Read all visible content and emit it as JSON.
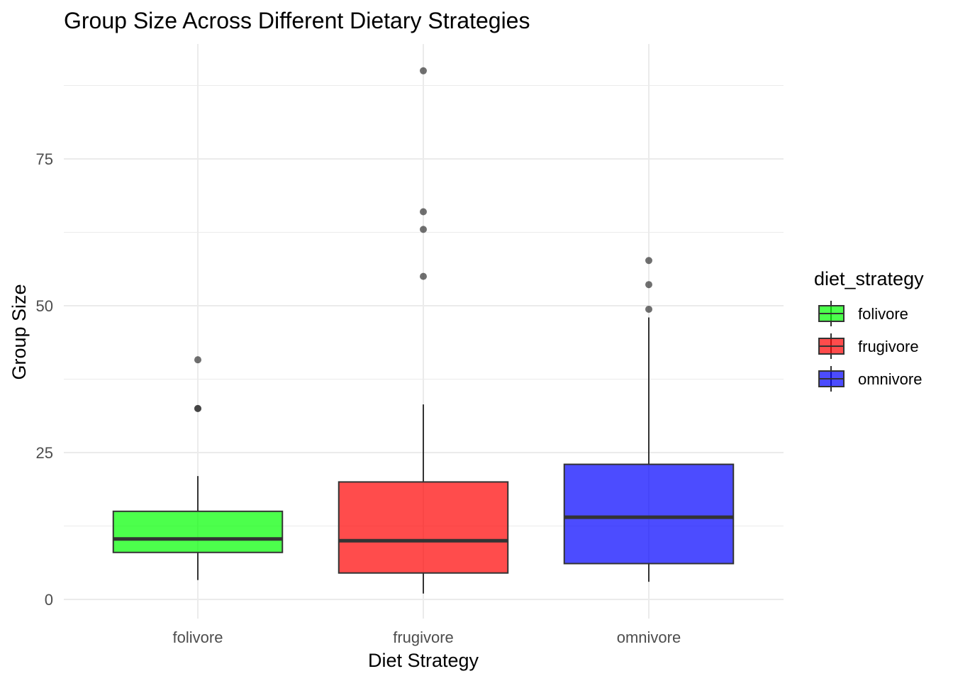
{
  "chart_data": {
    "type": "boxplot",
    "title": "Group Size Across Different Dietary Strategies",
    "xlabel": "Diet Strategy",
    "ylabel": "Group Size",
    "ylim": [
      -3,
      92
    ],
    "yticks": [
      0,
      25,
      50,
      75
    ],
    "grid": true,
    "legend": {
      "title": "diet_strategy",
      "position": "right",
      "entries": [
        "folivore",
        "frugivore",
        "omnivore"
      ]
    },
    "categories": [
      "folivore",
      "frugivore",
      "omnivore"
    ],
    "series": [
      {
        "name": "folivore",
        "color": "#00FF00",
        "whisker_low": 3.3,
        "q1": 8,
        "median": 10.3,
        "q3": 15,
        "whisker_high": 21,
        "outliers": [
          32.5,
          32.5,
          40.8
        ]
      },
      {
        "name": "frugivore",
        "color": "#FF0000",
        "whisker_low": 1,
        "q1": 4.5,
        "median": 10,
        "q3": 20,
        "whisker_high": 33.2,
        "outliers": [
          55,
          63,
          66,
          90
        ]
      },
      {
        "name": "omnivore",
        "color": "#0000FF",
        "whisker_low": 3,
        "q1": 6.1,
        "median": 14,
        "q3": 23,
        "whisker_high": 48,
        "outliers": [
          49.4,
          53.6,
          57.7
        ]
      }
    ]
  }
}
